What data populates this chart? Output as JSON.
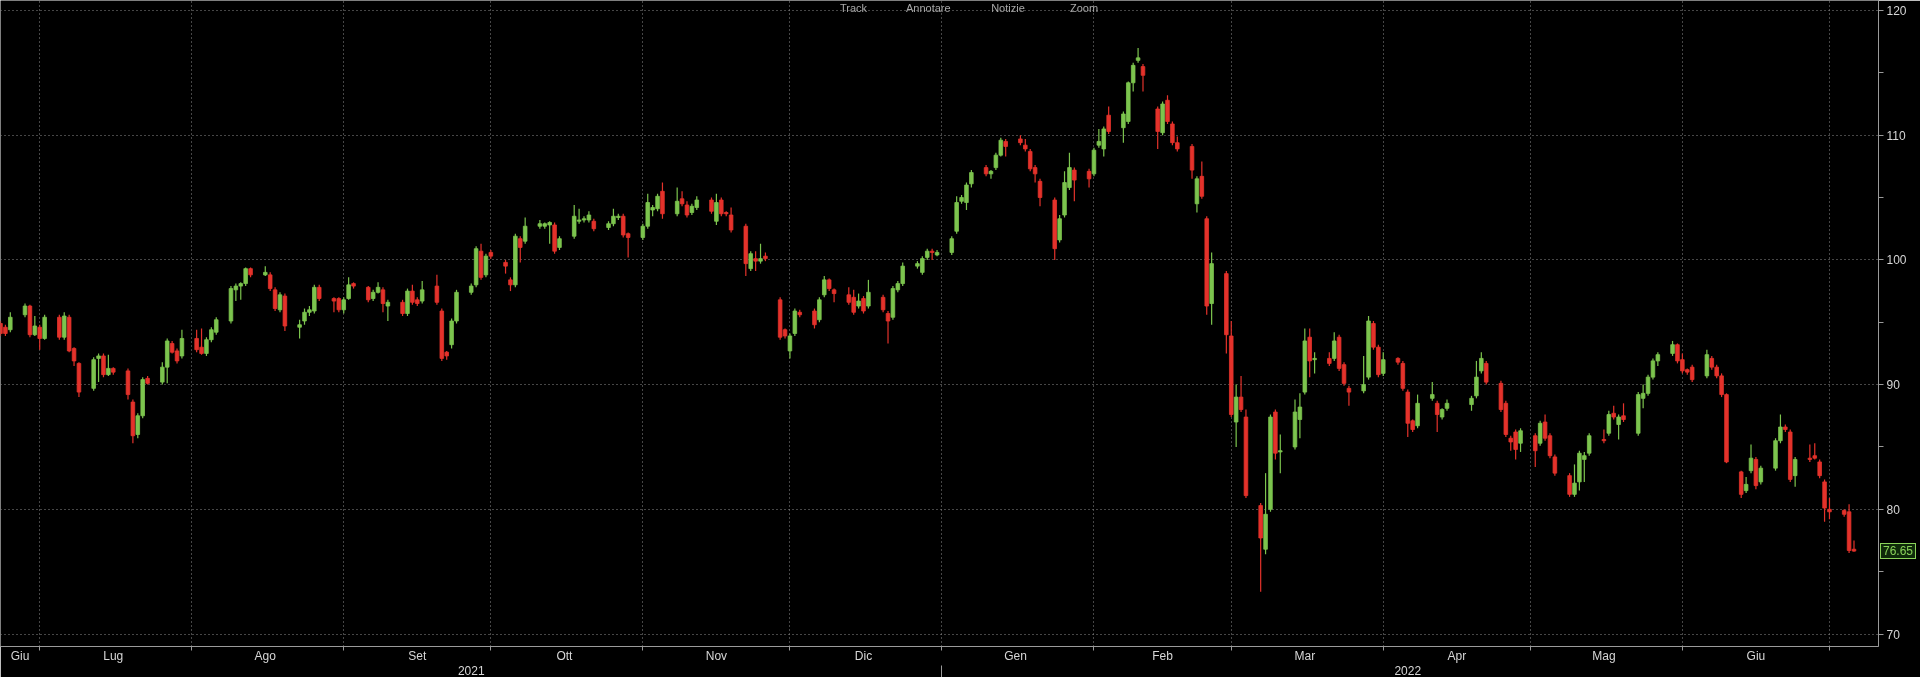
{
  "chart_data": {
    "type": "candlestick",
    "annotations": [
      "Track",
      "Annotare",
      "Notizie",
      "Zoom",
      "76.65"
    ],
    "x": [
      "2021-06-23",
      "2021-06-24",
      "2021-06-25",
      "2021-06-28",
      "2021-06-29",
      "2021-06-30",
      "2021-07-01",
      "2021-07-02",
      "2021-07-05",
      "2021-07-06",
      "2021-07-07",
      "2021-07-08",
      "2021-07-09",
      "2021-07-12",
      "2021-07-13",
      "2021-07-14",
      "2021-07-15",
      "2021-07-16",
      "2021-07-19",
      "2021-07-20",
      "2021-07-21",
      "2021-07-22",
      "2021-07-23",
      "2021-07-26",
      "2021-07-27",
      "2021-07-28",
      "2021-07-29",
      "2021-07-30",
      "2021-08-02",
      "2021-08-03",
      "2021-08-04",
      "2021-08-05",
      "2021-08-06",
      "2021-08-09",
      "2021-08-10",
      "2021-08-11",
      "2021-08-12",
      "2021-08-13",
      "2021-08-16",
      "2021-08-17",
      "2021-08-18",
      "2021-08-19",
      "2021-08-20",
      "2021-08-23",
      "2021-08-24",
      "2021-08-25",
      "2021-08-26",
      "2021-08-27",
      "2021-08-30",
      "2021-08-31",
      "2021-09-01",
      "2021-09-02",
      "2021-09-03",
      "2021-09-06",
      "2021-09-07",
      "2021-09-08",
      "2021-09-09",
      "2021-09-10",
      "2021-09-13",
      "2021-09-14",
      "2021-09-15",
      "2021-09-16",
      "2021-09-17",
      "2021-09-20",
      "2021-09-21",
      "2021-09-22",
      "2021-09-23",
      "2021-09-24",
      "2021-09-27",
      "2021-09-28",
      "2021-09-29",
      "2021-09-30",
      "2021-10-01",
      "2021-10-04",
      "2021-10-05",
      "2021-10-06",
      "2021-10-07",
      "2021-10-08",
      "2021-10-11",
      "2021-10-12",
      "2021-10-13",
      "2021-10-14",
      "2021-10-15",
      "2021-10-18",
      "2021-10-19",
      "2021-10-20",
      "2021-10-21",
      "2021-10-22",
      "2021-10-25",
      "2021-10-26",
      "2021-10-27",
      "2021-10-28",
      "2021-10-29",
      "2021-11-01",
      "2021-11-02",
      "2021-11-03",
      "2021-11-04",
      "2021-11-05",
      "2021-11-08",
      "2021-11-09",
      "2021-11-10",
      "2021-11-11",
      "2021-11-12",
      "2021-11-15",
      "2021-11-16",
      "2021-11-17",
      "2021-11-18",
      "2021-11-19",
      "2021-11-22",
      "2021-11-23",
      "2021-11-24",
      "2021-11-25",
      "2021-11-26",
      "2021-11-29",
      "2021-11-30",
      "2021-12-01",
      "2021-12-02",
      "2021-12-03",
      "2021-12-06",
      "2021-12-07",
      "2021-12-08",
      "2021-12-09",
      "2021-12-10",
      "2021-12-13",
      "2021-12-14",
      "2021-12-15",
      "2021-12-16",
      "2021-12-17",
      "2021-12-20",
      "2021-12-21",
      "2021-12-22",
      "2021-12-23",
      "2021-12-24",
      "2021-12-27",
      "2021-12-28",
      "2021-12-29",
      "2021-12-30",
      "2021-12-31",
      "2022-01-03",
      "2022-01-04",
      "2022-01-05",
      "2022-01-06",
      "2022-01-07",
      "2022-01-10",
      "2022-01-11",
      "2022-01-12",
      "2022-01-13",
      "2022-01-14",
      "2022-01-17",
      "2022-01-18",
      "2022-01-19",
      "2022-01-20",
      "2022-01-21",
      "2022-01-24",
      "2022-01-25",
      "2022-01-26",
      "2022-01-27",
      "2022-01-28",
      "2022-01-31",
      "2022-02-01",
      "2022-02-02",
      "2022-02-03",
      "2022-02-04",
      "2022-02-07",
      "2022-02-08",
      "2022-02-09",
      "2022-02-10",
      "2022-02-11",
      "2022-02-14",
      "2022-02-15",
      "2022-02-16",
      "2022-02-17",
      "2022-02-18",
      "2022-02-21",
      "2022-02-22",
      "2022-02-23",
      "2022-02-24",
      "2022-02-25",
      "2022-02-28",
      "2022-03-01",
      "2022-03-02",
      "2022-03-03",
      "2022-03-04",
      "2022-03-07",
      "2022-03-08",
      "2022-03-09",
      "2022-03-10",
      "2022-03-11",
      "2022-03-14",
      "2022-03-15",
      "2022-03-16",
      "2022-03-17",
      "2022-03-18",
      "2022-03-21",
      "2022-03-22",
      "2022-03-23",
      "2022-03-24",
      "2022-03-25",
      "2022-03-28",
      "2022-03-29",
      "2022-03-30",
      "2022-03-31",
      "2022-04-01",
      "2022-04-04",
      "2022-04-05",
      "2022-04-06",
      "2022-04-07",
      "2022-04-08",
      "2022-04-11",
      "2022-04-12",
      "2022-04-13",
      "2022-04-14",
      "2022-04-19",
      "2022-04-20",
      "2022-04-21",
      "2022-04-22",
      "2022-04-25",
      "2022-04-26",
      "2022-04-27",
      "2022-04-28",
      "2022-04-29",
      "2022-05-02",
      "2022-05-03",
      "2022-05-04",
      "2022-05-05",
      "2022-05-06",
      "2022-05-09",
      "2022-05-10",
      "2022-05-11",
      "2022-05-12",
      "2022-05-13",
      "2022-05-16",
      "2022-05-17",
      "2022-05-18",
      "2022-05-19",
      "2022-05-20",
      "2022-05-23",
      "2022-05-24",
      "2022-05-25",
      "2022-05-26",
      "2022-05-27",
      "2022-05-30",
      "2022-05-31",
      "2022-06-01",
      "2022-06-02",
      "2022-06-03",
      "2022-06-06",
      "2022-06-07",
      "2022-06-08",
      "2022-06-09",
      "2022-06-10",
      "2022-06-13",
      "2022-06-14",
      "2022-06-15",
      "2022-06-16",
      "2022-06-17",
      "2022-06-20",
      "2022-06-21",
      "2022-06-22",
      "2022-06-23",
      "2022-06-24",
      "2022-06-27",
      "2022-06-28",
      "2022-06-29",
      "2022-06-30",
      "2022-07-01",
      "2022-07-04",
      "2022-07-05",
      "2022-07-06"
    ],
    "ohlc": [
      [
        94.9,
        95.1,
        93.9,
        94.1
      ],
      [
        94.6,
        94.8,
        93.9,
        94.1
      ],
      [
        94.4,
        95.8,
        94.2,
        95.4
      ],
      [
        95.6,
        96.5,
        95.4,
        96.3
      ],
      [
        96.3,
        96.4,
        93.8,
        94.0
      ],
      [
        94.0,
        95.5,
        93.9,
        94.7
      ],
      [
        94.6,
        94.8,
        92.8,
        93.7
      ],
      [
        93.7,
        95.6,
        93.6,
        95.4
      ],
      [
        95.4,
        95.6,
        93.6,
        93.8
      ],
      [
        93.8,
        95.8,
        93.6,
        95.5
      ],
      [
        95.4,
        95.6,
        92.6,
        92.7
      ],
      [
        92.9,
        93.0,
        91.5,
        91.9
      ],
      [
        91.7,
        91.8,
        89.0,
        89.4
      ],
      [
        89.7,
        92.2,
        89.5,
        92.0
      ],
      [
        92.1,
        92.5,
        90.2,
        92.3
      ],
      [
        92.3,
        92.5,
        90.6,
        90.8
      ],
      [
        90.8,
        92.4,
        90.7,
        91.3
      ],
      [
        91.3,
        91.4,
        90.8,
        91.0
      ],
      [
        91.1,
        91.3,
        88.8,
        89.2
      ],
      [
        88.6,
        88.8,
        85.3,
        85.9
      ],
      [
        86.0,
        87.7,
        85.7,
        87.5
      ],
      [
        87.5,
        90.6,
        87.3,
        90.4
      ],
      [
        90.5,
        90.7,
        90.0,
        90.1
      ],
      [
        90.2,
        91.8,
        90.0,
        91.4
      ],
      [
        91.4,
        93.7,
        90.1,
        93.5
      ],
      [
        93.3,
        93.5,
        92.5,
        92.6
      ],
      [
        92.7,
        92.9,
        91.7,
        91.9
      ],
      [
        92.3,
        94.4,
        92.1,
        93.7
      ],
      [
        93.7,
        94.4,
        92.6,
        92.8
      ],
      [
        93.0,
        94.5,
        92.4,
        92.5
      ],
      [
        92.5,
        93.8,
        92.3,
        93.6
      ],
      [
        93.6,
        94.6,
        93.4,
        94.4
      ],
      [
        94.2,
        95.4,
        94.0,
        95.2
      ],
      [
        95.1,
        97.9,
        94.9,
        97.7
      ],
      [
        97.6,
        98.1,
        96.7,
        97.9
      ],
      [
        97.9,
        98.2,
        96.8,
        98.1
      ],
      [
        98.1,
        99.4,
        97.9,
        99.3
      ],
      [
        99.3,
        99.4,
        98.6,
        98.8
      ],
      [
        98.8,
        99.5,
        98.7,
        99.0
      ],
      [
        98.8,
        99.0,
        97.5,
        97.7
      ],
      [
        97.6,
        97.8,
        95.9,
        96.1
      ],
      [
        96.0,
        97.4,
        95.8,
        97.2
      ],
      [
        97.1,
        97.3,
        94.3,
        94.7
      ],
      [
        94.6,
        95.2,
        93.7,
        94.8
      ],
      [
        95.1,
        96.1,
        94.8,
        95.8
      ],
      [
        95.8,
        96.3,
        95.5,
        96.0
      ],
      [
        95.9,
        98.0,
        95.7,
        97.8
      ],
      [
        97.8,
        98.0,
        96.7,
        96.9
      ],
      [
        96.9,
        97.0,
        95.8,
        96.7
      ],
      [
        96.9,
        97.0,
        95.8,
        96.0
      ],
      [
        96.0,
        97.0,
        95.7,
        96.8
      ],
      [
        96.9,
        98.6,
        96.8,
        98.0
      ],
      [
        98.1,
        98.2,
        97.7,
        97.9
      ],
      [
        97.8,
        97.9,
        96.6,
        96.8
      ],
      [
        96.9,
        97.6,
        96.7,
        97.4
      ],
      [
        97.4,
        98.2,
        97.3,
        97.8
      ],
      [
        97.6,
        97.8,
        95.8,
        96.5
      ],
      [
        96.3,
        96.8,
        95.1,
        96.6
      ],
      [
        96.6,
        96.8,
        95.5,
        95.7
      ],
      [
        95.7,
        97.7,
        95.5,
        97.5
      ],
      [
        97.5,
        98.0,
        96.4,
        96.6
      ],
      [
        96.8,
        97.0,
        96.3,
        96.5
      ],
      [
        96.7,
        98.3,
        96.5,
        97.6
      ],
      [
        97.9,
        98.8,
        96.4,
        96.6
      ],
      [
        95.9,
        96.1,
        91.9,
        92.1
      ],
      [
        92.6,
        92.7,
        92.0,
        92.3
      ],
      [
        93.2,
        95.3,
        92.9,
        95.1
      ],
      [
        95.1,
        97.6,
        94.9,
        97.4
      ],
      [
        97.4,
        98.1,
        97.2,
        97.9
      ],
      [
        98.0,
        101.1,
        97.8,
        100.9
      ],
      [
        100.7,
        101.3,
        98.4,
        98.6
      ],
      [
        98.8,
        100.5,
        98.6,
        100.3
      ],
      [
        100.6,
        100.8,
        100.1,
        100.3
      ],
      [
        99.8,
        100.0,
        98.9,
        99.5
      ],
      [
        98.4,
        98.6,
        97.5,
        98.0
      ],
      [
        98.0,
        102.1,
        97.8,
        101.9
      ],
      [
        101.7,
        101.9,
        99.8,
        101.0
      ],
      [
        101.5,
        103.4,
        101.3,
        102.7
      ],
      [
        102.7,
        103.2,
        102.5,
        102.9
      ],
      [
        102.7,
        103.0,
        102.5,
        102.9
      ],
      [
        102.8,
        103.1,
        101.3,
        103.0
      ],
      [
        102.8,
        103.0,
        100.5,
        100.7
      ],
      [
        101.0,
        101.9,
        100.8,
        101.7
      ],
      [
        101.9,
        104.4,
        101.7,
        103.5
      ],
      [
        103.1,
        104.1,
        102.9,
        103.2
      ],
      [
        103.2,
        103.5,
        103.0,
        103.3
      ],
      [
        103.2,
        103.9,
        103.0,
        103.6
      ],
      [
        103.1,
        103.3,
        102.3,
        102.5
      ],
      [
        102.6,
        103.1,
        102.4,
        102.9
      ],
      [
        102.9,
        104.1,
        102.7,
        103.5
      ],
      [
        103.4,
        103.7,
        103.2,
        103.5
      ],
      [
        103.5,
        103.7,
        101.8,
        102.0
      ],
      [
        102.1,
        102.2,
        100.2,
        101.8
      ],
      [
        101.8,
        102.9,
        101.6,
        102.7
      ],
      [
        102.7,
        105.3,
        102.5,
        104.6
      ],
      [
        104.0,
        104.4,
        103.5,
        104.2
      ],
      [
        104.1,
        105.3,
        103.9,
        105.1
      ],
      [
        105.5,
        106.2,
        103.3,
        103.7
      ],
      [
        103.7,
        105.8,
        103.5,
        104.7
      ],
      [
        104.9,
        105.5,
        104.3,
        104.5
      ],
      [
        104.4,
        104.7,
        103.4,
        103.6
      ],
      [
        103.8,
        104.5,
        103.6,
        104.3
      ],
      [
        104.2,
        105.1,
        104.0,
        104.8
      ],
      [
        104.8,
        105.0,
        103.7,
        103.9
      ],
      [
        103.1,
        105.3,
        102.8,
        104.6
      ],
      [
        104.8,
        105.0,
        103.5,
        103.7
      ],
      [
        103.8,
        103.9,
        103.5,
        103.7
      ],
      [
        103.6,
        104.2,
        102.2,
        102.4
      ],
      [
        102.7,
        102.9,
        98.7,
        99.7
      ],
      [
        99.3,
        100.7,
        99.1,
        100.5
      ],
      [
        100.1,
        100.7,
        99.1,
        99.9
      ],
      [
        99.9,
        101.3,
        99.7,
        100.1
      ],
      [
        100.3,
        100.6,
        99.9,
        100.1
      ],
      [
        96.8,
        97.0,
        93.6,
        93.8
      ],
      [
        94.4,
        94.5,
        93.7,
        93.9
      ],
      [
        92.7,
        94.1,
        92.1,
        93.9
      ],
      [
        94.1,
        96.1,
        93.9,
        95.9
      ],
      [
        95.8,
        96.0,
        95.4,
        95.6
      ],
      [
        95.9,
        96.1,
        94.5,
        94.8
      ],
      [
        95.2,
        97.0,
        95.0,
        96.8
      ],
      [
        97.2,
        98.7,
        97.0,
        98.4
      ],
      [
        98.4,
        98.5,
        97.5,
        97.7
      ],
      [
        97.6,
        97.7,
        96.6,
        97.3
      ],
      [
        97.2,
        97.8,
        96.4,
        96.6
      ],
      [
        97.0,
        97.6,
        95.6,
        95.8
      ],
      [
        96.3,
        97.3,
        96.1,
        96.7
      ],
      [
        96.9,
        97.1,
        95.7,
        95.9
      ],
      [
        96.3,
        98.4,
        96.1,
        97.4
      ],
      [
        97.0,
        97.2,
        95.8,
        96.0
      ],
      [
        95.7,
        95.9,
        93.3,
        95.1
      ],
      [
        95.4,
        97.9,
        95.2,
        97.7
      ],
      [
        97.6,
        98.3,
        97.4,
        98.1
      ],
      [
        98.1,
        99.8,
        97.9,
        99.5
      ],
      [
        99.5,
        99.9,
        99.3,
        99.7
      ],
      [
        99.0,
        100.3,
        98.8,
        100.1
      ],
      [
        100.2,
        100.9,
        100.0,
        100.7
      ],
      [
        100.7,
        100.9,
        100.0,
        100.6
      ],
      [
        100.4,
        100.8,
        100.3,
        100.6
      ],
      [
        100.6,
        101.9,
        100.4,
        101.7
      ],
      [
        102.3,
        105.1,
        102.1,
        104.6
      ],
      [
        104.7,
        105.2,
        104.5,
        105.0
      ],
      [
        104.6,
        106.2,
        104.0,
        106.0
      ],
      [
        106.1,
        107.2,
        105.8,
        107.0
      ],
      [
        107.4,
        107.6,
        106.7,
        106.9
      ],
      [
        106.9,
        107.2,
        106.5,
        107.1
      ],
      [
        107.4,
        108.6,
        107.2,
        108.4
      ],
      [
        108.4,
        109.8,
        108.3,
        109.6
      ],
      [
        109.5,
        109.7,
        108.3,
        109.1
      ],
      [
        109.7,
        110.0,
        109.2,
        109.4
      ],
      [
        109.2,
        109.7,
        108.7,
        108.9
      ],
      [
        108.7,
        108.9,
        107.1,
        107.3
      ],
      [
        107.4,
        107.6,
        106.2,
        106.9
      ],
      [
        106.3,
        106.5,
        104.3,
        105.0
      ],
      [
        104.8,
        105.0,
        100.0,
        100.9
      ],
      [
        101.6,
        103.6,
        101.4,
        103.3
      ],
      [
        103.6,
        107.1,
        103.4,
        106.2
      ],
      [
        105.8,
        108.6,
        105.6,
        107.4
      ],
      [
        107.2,
        107.4,
        104.7,
        106.4
      ],
      [
        107.1,
        107.3,
        105.8,
        106.5
      ],
      [
        106.9,
        109.0,
        106.7,
        108.8
      ],
      [
        109.2,
        110.5,
        109.0,
        109.5
      ],
      [
        108.9,
        110.7,
        108.3,
        110.5
      ],
      [
        111.6,
        112.3,
        110.1,
        110.3
      ],
      [
        110.6,
        111.9,
        109.4,
        111.7
      ],
      [
        111.1,
        114.3,
        110.9,
        114.2
      ],
      [
        114.2,
        115.8,
        113.5,
        115.6
      ],
      [
        116.0,
        117.0,
        115.8,
        116.2
      ],
      [
        115.5,
        115.7,
        113.5,
        114.8
      ],
      [
        112.1,
        112.3,
        108.9,
        110.3
      ],
      [
        110.2,
        112.7,
        110.0,
        112.5
      ],
      [
        112.8,
        113.2,
        110.9,
        111.1
      ],
      [
        110.9,
        111.1,
        109.2,
        109.4
      ],
      [
        109.4,
        109.9,
        108.7,
        108.9
      ],
      [
        109.1,
        109.3,
        106.5,
        107.2
      ],
      [
        104.5,
        106.7,
        103.8,
        106.5
      ],
      [
        106.7,
        107.9,
        104.9,
        105.1
      ],
      [
        103.3,
        103.5,
        95.6,
        96.3
      ],
      [
        96.5,
        100.6,
        94.8,
        99.7
      ],
      [
        98.9,
        99.1,
        92.5,
        94.0
      ],
      [
        93.9,
        95.1,
        87.4,
        87.6
      ],
      [
        87.0,
        90.0,
        85.0,
        89.0
      ],
      [
        89.0,
        90.7,
        87.8,
        88.0
      ],
      [
        87.4,
        88.0,
        80.9,
        81.1
      ],
      [
        80.3,
        80.5,
        73.4,
        77.7
      ],
      [
        76.8,
        82.9,
        76.4,
        79.6
      ],
      [
        80.0,
        87.6,
        79.8,
        87.4
      ],
      [
        87.8,
        88.0,
        84.0,
        84.5
      ],
      [
        84.6,
        86.0,
        82.9,
        84.7
      ],
      [
        85.0,
        88.8,
        84.8,
        87.8
      ],
      [
        87.2,
        89.3,
        85.7,
        88.2
      ],
      [
        89.4,
        94.5,
        89.2,
        93.5
      ],
      [
        93.8,
        94.5,
        90.6,
        91.9
      ],
      [
        92.0,
        92.6,
        90.9,
        92.1
      ],
      [
        92.1,
        92.6,
        91.5,
        91.7
      ],
      [
        92.1,
        94.2,
        91.9,
        93.5
      ],
      [
        93.8,
        94.0,
        91.1,
        91.3
      ],
      [
        91.6,
        91.8,
        89.9,
        90.1
      ],
      [
        89.7,
        89.9,
        88.3,
        89.4
      ],
      [
        89.5,
        92.3,
        89.3,
        90.0
      ],
      [
        90.6,
        95.5,
        90.4,
        95.1
      ],
      [
        94.9,
        95.1,
        92.8,
        93.0
      ],
      [
        93.0,
        93.2,
        90.6,
        90.8
      ],
      [
        90.9,
        92.6,
        90.7,
        92.0
      ],
      [
        92.1,
        92.2,
        91.6,
        91.8
      ],
      [
        91.7,
        91.9,
        89.5,
        89.7
      ],
      [
        89.4,
        89.6,
        85.8,
        86.9
      ],
      [
        87.1,
        87.2,
        86.2,
        86.4
      ],
      [
        86.7,
        89.2,
        86.5,
        88.5
      ],
      [
        88.9,
        90.2,
        88.7,
        89.2
      ],
      [
        88.5,
        88.7,
        86.2,
        87.6
      ],
      [
        87.4,
        88.1,
        87.2,
        88.0
      ],
      [
        88.1,
        88.8,
        87.9,
        88.5
      ],
      [
        88.4,
        89.1,
        87.9,
        88.9
      ],
      [
        89.1,
        91.9,
        88.9,
        90.6
      ],
      [
        91.1,
        92.6,
        90.9,
        92.1
      ],
      [
        91.7,
        91.9,
        90.0,
        90.2
      ],
      [
        90.1,
        90.3,
        87.8,
        88.0
      ],
      [
        88.5,
        88.7,
        85.8,
        86.0
      ],
      [
        85.7,
        85.9,
        84.7,
        85.4
      ],
      [
        86.2,
        86.4,
        84.0,
        84.8
      ],
      [
        85.3,
        86.5,
        84.6,
        86.3
      ],
      [
        85.9,
        86.1,
        83.4,
        84.7
      ],
      [
        85.3,
        87.1,
        85.1,
        86.9
      ],
      [
        87.0,
        87.6,
        85.5,
        85.7
      ],
      [
        85.9,
        86.1,
        84.1,
        84.3
      ],
      [
        84.2,
        84.4,
        82.7,
        82.9
      ],
      [
        82.7,
        82.9,
        81.0,
        81.2
      ],
      [
        81.2,
        83.6,
        81.0,
        82.1
      ],
      [
        82.2,
        84.7,
        81.5,
        84.5
      ],
      [
        84.0,
        84.6,
        82.2,
        84.3
      ],
      [
        84.5,
        86.1,
        84.3,
        85.9
      ],
      [
        85.6,
        86.4,
        85.3,
        85.5
      ],
      [
        86.1,
        87.9,
        85.9,
        87.6
      ],
      [
        87.7,
        88.3,
        87.2,
        87.4
      ],
      [
        86.8,
        87.6,
        85.6,
        87.4
      ],
      [
        87.5,
        88.5,
        87.0,
        87.2
      ],
      [
        86.1,
        89.4,
        85.9,
        89.2
      ],
      [
        88.9,
        90.0,
        88.1,
        89.3
      ],
      [
        89.3,
        90.8,
        89.1,
        90.6
      ],
      [
        90.6,
        92.1,
        90.4,
        91.9
      ],
      [
        91.9,
        92.6,
        91.5,
        92.4
      ],
      [
        92.5,
        93.5,
        92.3,
        93.2
      ],
      [
        93.2,
        93.3,
        91.7,
        91.9
      ],
      [
        92.0,
        92.5,
        90.9,
        91.1
      ],
      [
        91.2,
        91.3,
        90.8,
        91.0
      ],
      [
        91.4,
        91.6,
        90.2,
        90.4
      ],
      [
        90.7,
        92.8,
        90.5,
        92.4
      ],
      [
        92.1,
        92.3,
        91.2,
        91.4
      ],
      [
        91.4,
        91.6,
        90.5,
        90.7
      ],
      [
        90.7,
        90.9,
        89.0,
        89.2
      ],
      [
        89.2,
        89.3,
        83.7,
        83.8
      ],
      [
        83.0,
        83.1,
        80.9,
        81.2
      ],
      [
        81.5,
        82.6,
        81.3,
        82.0
      ],
      [
        83.1,
        85.2,
        82.9,
        84.1
      ],
      [
        84.0,
        84.2,
        81.6,
        81.9
      ],
      [
        82.2,
        83.5,
        82.0,
        83.3
      ],
      [
        83.3,
        85.7,
        83.1,
        85.5
      ],
      [
        85.5,
        87.6,
        85.3,
        86.6
      ],
      [
        86.6,
        86.8,
        86.2,
        86.4
      ],
      [
        86.2,
        86.4,
        82.2,
        82.4
      ],
      [
        82.7,
        84.2,
        81.8,
        84.0
      ],
      [
        84.1,
        85.2,
        83.8,
        84.0
      ],
      [
        84.3,
        85.3,
        84.0,
        84.1
      ],
      [
        83.8,
        84.0,
        82.5,
        82.7
      ],
      [
        82.2,
        82.4,
        79.0,
        80.1
      ],
      [
        80.0,
        80.9,
        79.2,
        79.8
      ],
      [
        79.9,
        80.0,
        79.4,
        79.6
      ],
      [
        79.8,
        80.4,
        76.5,
        76.7
      ],
      [
        76.8,
        77.5,
        76.6,
        76.65
      ]
    ],
    "colors": [
      "#e4322b",
      "#e4322b",
      "#7cc44e",
      "#7cc44e",
      "#e4322b",
      "#7cc44e",
      "#e4322b",
      "#7cc44e",
      "#e4322b",
      "#7cc44e",
      "#e4322b",
      "#e4322b",
      "#e4322b",
      "#7cc44e",
      "#7cc44e",
      "#e4322b",
      "#7cc44e",
      "#e4322b",
      "#e4322b",
      "#e4322b",
      "#7cc44e",
      "#7cc44e",
      "#e4322b",
      "#7cc44e",
      "#7cc44e",
      "#e4322b",
      "#e4322b",
      "#7cc44e",
      "#e4322b",
      "#e4322b",
      "#7cc44e",
      "#7cc44e",
      "#7cc44e",
      "#7cc44e",
      "#7cc44e",
      "#7cc44e",
      "#7cc44e",
      "#e4322b",
      "#7cc44e",
      "#e4322b",
      "#e4322b",
      "#7cc44e",
      "#e4322b",
      "#7cc44e",
      "#7cc44e",
      "#7cc44e",
      "#7cc44e",
      "#e4322b",
      "#e4322b",
      "#e4322b",
      "#7cc44e",
      "#7cc44e",
      "#e4322b",
      "#e4322b",
      "#7cc44e",
      "#7cc44e",
      "#e4322b",
      "#7cc44e",
      "#e4322b",
      "#7cc44e",
      "#e4322b",
      "#e4322b",
      "#7cc44e",
      "#e4322b",
      "#e4322b",
      "#e4322b",
      "#7cc44e",
      "#7cc44e",
      "#7cc44e",
      "#7cc44e",
      "#e4322b",
      "#7cc44e",
      "#e4322b",
      "#e4322b",
      "#e4322b",
      "#7cc44e",
      "#e4322b",
      "#7cc44e",
      "#7cc44e",
      "#7cc44e",
      "#7cc44e",
      "#e4322b",
      "#7cc44e",
      "#7cc44e",
      "#7cc44e",
      "#7cc44e",
      "#7cc44e",
      "#e4322b",
      "#7cc44e",
      "#7cc44e",
      "#7cc44e",
      "#e4322b",
      "#e4322b",
      "#7cc44e",
      "#7cc44e",
      "#7cc44e",
      "#7cc44e",
      "#e4322b",
      "#7cc44e",
      "#e4322b",
      "#e4322b",
      "#7cc44e",
      "#7cc44e",
      "#e4322b",
      "#7cc44e",
      "#e4322b",
      "#e4322b",
      "#e4322b",
      "#e4322b",
      "#7cc44e",
      "#e4322b",
      "#7cc44e",
      "#e4322b",
      "#e4322b",
      "#e4322b",
      "#7cc44e",
      "#7cc44e",
      "#e4322b",
      "#e4322b",
      "#7cc44e",
      "#7cc44e",
      "#e4322b",
      "#e4322b",
      "#e4322b",
      "#e4322b",
      "#7cc44e",
      "#e4322b",
      "#7cc44e",
      "#e4322b",
      "#e4322b",
      "#7cc44e",
      "#7cc44e",
      "#7cc44e",
      "#7cc44e",
      "#7cc44e",
      "#7cc44e",
      "#e4322b",
      "#7cc44e",
      "#7cc44e",
      "#7cc44e",
      "#7cc44e",
      "#7cc44e",
      "#7cc44e",
      "#e4322b",
      "#7cc44e",
      "#7cc44e",
      "#7cc44e",
      "#e4322b",
      "#e4322b",
      "#e4322b",
      "#e4322b",
      "#e4322b",
      "#e4322b",
      "#e4322b",
      "#7cc44e",
      "#7cc44e",
      "#7cc44e",
      "#e4322b",
      "#e4322b",
      "#7cc44e",
      "#7cc44e",
      "#7cc44e",
      "#e4322b",
      "#7cc44e",
      "#7cc44e",
      "#7cc44e",
      "#7cc44e",
      "#e4322b",
      "#e4322b",
      "#7cc44e",
      "#e4322b",
      "#e4322b",
      "#e4322b",
      "#e4322b",
      "#7cc44e",
      "#e4322b",
      "#e4322b",
      "#7cc44e",
      "#e4322b",
      "#e4322b",
      "#7cc44e",
      "#e4322b",
      "#e4322b",
      "#e4322b",
      "#7cc44e",
      "#7cc44e",
      "#e4322b",
      "#7cc44e",
      "#7cc44e",
      "#7cc44e",
      "#7cc44e",
      "#e4322b",
      "#7cc44e",
      "#e4322b",
      "#7cc44e",
      "#e4322b",
      "#e4322b",
      "#e4322b",
      "#7cc44e",
      "#7cc44e",
      "#e4322b",
      "#e4322b",
      "#7cc44e",
      "#e4322b",
      "#e4322b",
      "#e4322b",
      "#e4322b",
      "#7cc44e",
      "#7cc44e",
      "#e4322b",
      "#7cc44e",
      "#7cc44e",
      "#7cc44e",
      "#7cc44e",
      "#7cc44e",
      "#e4322b",
      "#e4322b",
      "#e4322b",
      "#e4322b",
      "#e4322b",
      "#7cc44e",
      "#e4322b",
      "#7cc44e",
      "#e4322b",
      "#e4322b",
      "#e4322b",
      "#e4322b",
      "#7cc44e",
      "#7cc44e",
      "#7cc44e",
      "#7cc44e",
      "#e4322b",
      "#7cc44e",
      "#e4322b",
      "#7cc44e",
      "#e4322b",
      "#7cc44e",
      "#7cc44e",
      "#7cc44e",
      "#7cc44e",
      "#7cc44e",
      "#7cc44e",
      "#e4322b",
      "#e4322b",
      "#e4322b",
      "#e4322b",
      "#7cc44e",
      "#e4322b",
      "#e4322b",
      "#e4322b",
      "#e4322b",
      "#e4322b",
      "#7cc44e",
      "#7cc44e",
      "#e4322b",
      "#7cc44e",
      "#7cc44e",
      "#7cc44e",
      "#e4322b",
      "#e4322b",
      "#7cc44e",
      "#e4322b",
      "#e4322b",
      "#e4322b",
      "#e4322b",
      "#e4322b",
      "#e4322b",
      "#e4322b",
      "#e4322b"
    ],
    "xlim": [
      "2021-06-23",
      "2022-07-11"
    ],
    "xticks": [
      {
        "value": "2021-06-27",
        "label": "Giu"
      },
      {
        "value": "2021-07-01",
        "label": null
      },
      {
        "value": "2021-07-16",
        "label": "Lug"
      },
      {
        "value": "2021-08-01",
        "label": null
      },
      {
        "value": "2021-08-16",
        "label": "Ago"
      },
      {
        "value": "2021-09-01",
        "label": null
      },
      {
        "value": "2021-09-16",
        "label": "Set"
      },
      {
        "value": "2021-10-01",
        "label": null
      },
      {
        "value": "2021-10-16",
        "label": "Ott"
      },
      {
        "value": "2021-11-01",
        "label": null
      },
      {
        "value": "2021-11-16",
        "label": "Nov"
      },
      {
        "value": "2021-12-01",
        "label": null
      },
      {
        "value": "2021-12-16",
        "label": "Dic"
      },
      {
        "value": "2022-01-01",
        "label": null
      },
      {
        "value": "2022-01-16",
        "label": "Gen"
      },
      {
        "value": "2022-02-01",
        "label": null
      },
      {
        "value": "2022-02-15",
        "label": "Feb"
      },
      {
        "value": "2022-03-01",
        "label": null
      },
      {
        "value": "2022-03-16",
        "label": "Mar"
      },
      {
        "value": "2022-04-01",
        "label": null
      },
      {
        "value": "2022-04-16",
        "label": "Apr"
      },
      {
        "value": "2022-05-01",
        "label": null
      },
      {
        "value": "2022-05-16",
        "label": "Mag"
      },
      {
        "value": "2022-06-01",
        "label": null
      },
      {
        "value": "2022-06-16",
        "label": "Giu"
      },
      {
        "value": "2022-07-01",
        "label": null
      }
    ],
    "x2lim": [
      "2021-06-23",
      "2022-07-11"
    ],
    "x2ticks": [
      {
        "value": "2021-09-27",
        "label": "2021"
      },
      {
        "value": "2022-01-01",
        "label": null
      },
      {
        "value": "2022-04-06",
        "label": "2022"
      }
    ],
    "ylim": [
      69,
      120.8
    ],
    "yticks": [
      70,
      {
        "value": 75,
        "label": null
      },
      80,
      {
        "value": 85,
        "label": null
      },
      90,
      {
        "value": 95,
        "label": null
      },
      100,
      {
        "value": 105,
        "label": null
      },
      110,
      {
        "value": 115,
        "label": null
      },
      120
    ],
    "grid": true
  }
}
